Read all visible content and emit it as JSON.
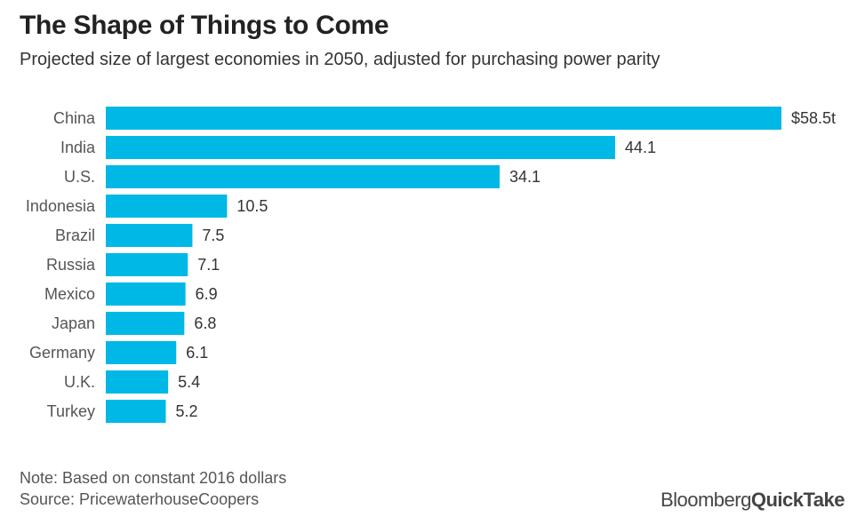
{
  "header": {
    "title": "The Shape of Things to Come",
    "subtitle": "Projected size of largest economies in 2050, adjusted for purchasing power parity"
  },
  "footer": {
    "note": "Note: Based on constant 2016 dollars",
    "source": "Source: PricewaterhouseCoopers",
    "brand_part1": "Bloomberg",
    "brand_part2": "QuickTake"
  },
  "colors": {
    "bar": "#00b8e6"
  },
  "chart_data": {
    "type": "bar",
    "orientation": "horizontal",
    "title": "The Shape of Things to Come",
    "subtitle": "Projected size of largest economies in 2050, adjusted for purchasing power parity",
    "categories": [
      "China",
      "India",
      "U.S.",
      "Indonesia",
      "Brazil",
      "Russia",
      "Mexico",
      "Japan",
      "Germany",
      "U.K.",
      "Turkey"
    ],
    "values": [
      58.5,
      44.1,
      34.1,
      10.5,
      7.5,
      7.1,
      6.9,
      6.8,
      6.1,
      5.4,
      5.2
    ],
    "value_labels": [
      "$58.5t",
      "44.1",
      "34.1",
      "10.5",
      "7.5",
      "7.1",
      "6.9",
      "6.8",
      "6.1",
      "5.4",
      "5.2"
    ],
    "xlim": [
      0,
      58.5
    ],
    "grid": false,
    "legend": "none"
  }
}
